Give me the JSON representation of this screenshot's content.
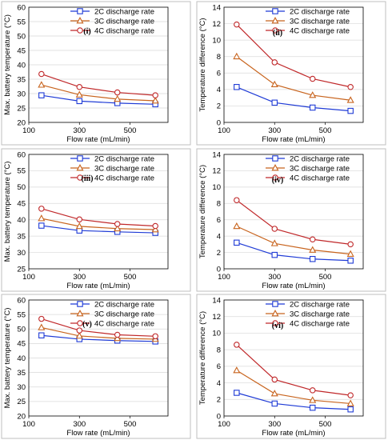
{
  "colors": {
    "2C": "#1f3bd6",
    "3C": "#c8641e",
    "4C": "#c0282a",
    "grid": "#d9d9d9"
  },
  "chart_data": [
    {
      "id": "i",
      "type": "line",
      "title": "",
      "panel_label": "(i)",
      "xlabel": "Flow rate (mL/min)",
      "ylabel": "Max. battery temperature (°C)",
      "x": [
        150,
        300,
        450,
        600
      ],
      "xlim": [
        100,
        650
      ],
      "xticks": [
        100,
        300,
        500
      ],
      "ylim": [
        20,
        60
      ],
      "yticks": [
        20,
        25,
        30,
        35,
        40,
        45,
        50,
        55,
        60
      ],
      "grid": "horizontal",
      "legend_position": "top-right",
      "series": [
        {
          "name": "2C discharge rate",
          "marker": "square",
          "values": [
            29.4,
            27.4,
            26.7,
            26.3
          ]
        },
        {
          "name": "3C discharge rate",
          "marker": "triangle",
          "values": [
            33.0,
            29.6,
            28.1,
            27.5
          ]
        },
        {
          "name": "4C discharge rate",
          "marker": "circle",
          "values": [
            36.8,
            32.3,
            30.4,
            29.4
          ]
        }
      ]
    },
    {
      "id": "ii",
      "type": "line",
      "title": "",
      "panel_label": "(ii)",
      "xlabel": "Flow rate (mL/min)",
      "ylabel": "Temperature difference (°C)",
      "x": [
        150,
        300,
        450,
        600
      ],
      "xlim": [
        100,
        650
      ],
      "xticks": [
        100,
        300,
        500
      ],
      "ylim": [
        0,
        14
      ],
      "yticks": [
        0,
        2,
        4,
        6,
        8,
        10,
        12,
        14
      ],
      "grid": "horizontal",
      "legend_position": "top-right",
      "series": [
        {
          "name": "2C discharge rate",
          "marker": "square",
          "values": [
            4.3,
            2.4,
            1.8,
            1.4
          ]
        },
        {
          "name": "3C discharge rate",
          "marker": "triangle",
          "values": [
            8.0,
            4.6,
            3.3,
            2.7
          ]
        },
        {
          "name": "4C discharge rate",
          "marker": "circle",
          "values": [
            11.9,
            7.3,
            5.3,
            4.3
          ]
        }
      ]
    },
    {
      "id": "iii",
      "type": "line",
      "title": "",
      "panel_label": "(iii)",
      "xlabel": "Flow rate (mL/min)",
      "ylabel": "Max. battery temperature (°C)",
      "x": [
        150,
        300,
        450,
        600
      ],
      "xlim": [
        100,
        650
      ],
      "xticks": [
        100,
        300,
        500
      ],
      "ylim": [
        25,
        60
      ],
      "yticks": [
        25,
        30,
        35,
        40,
        45,
        50,
        55,
        60
      ],
      "grid": "horizontal",
      "legend_position": "top-right",
      "series": [
        {
          "name": "2C discharge rate",
          "marker": "square",
          "values": [
            38.2,
            36.7,
            36.3,
            36.0
          ]
        },
        {
          "name": "3C discharge rate",
          "marker": "triangle",
          "values": [
            40.4,
            38.0,
            37.3,
            37.0
          ]
        },
        {
          "name": "4C discharge rate",
          "marker": "circle",
          "values": [
            43.4,
            40.1,
            38.7,
            38.1
          ]
        }
      ]
    },
    {
      "id": "iv",
      "type": "line",
      "title": "",
      "panel_label": "(iv)",
      "xlabel": "Flow rate (mL/min)",
      "ylabel": "Temperature difference (°C)",
      "x": [
        150,
        300,
        450,
        600
      ],
      "xlim": [
        100,
        650
      ],
      "xticks": [
        100,
        300,
        500
      ],
      "ylim": [
        0,
        14
      ],
      "yticks": [
        0,
        2,
        4,
        6,
        8,
        10,
        12,
        14
      ],
      "grid": "horizontal",
      "legend_position": "top-right",
      "series": [
        {
          "name": "2C discharge rate",
          "marker": "square",
          "values": [
            3.2,
            1.7,
            1.2,
            1.0
          ]
        },
        {
          "name": "3C discharge rate",
          "marker": "triangle",
          "values": [
            5.2,
            3.1,
            2.3,
            1.8
          ]
        },
        {
          "name": "4C discharge rate",
          "marker": "circle",
          "values": [
            8.4,
            4.9,
            3.6,
            3.0
          ]
        }
      ]
    },
    {
      "id": "v",
      "type": "line",
      "title": "",
      "panel_label": "(v)",
      "xlabel": "Flow rate (mL/min)",
      "ylabel": "Max. battery temperature (°C)",
      "x": [
        150,
        300,
        450,
        600
      ],
      "xlim": [
        100,
        650
      ],
      "xticks": [
        100,
        300,
        500
      ],
      "ylim": [
        20,
        60
      ],
      "yticks": [
        20,
        25,
        30,
        35,
        40,
        45,
        50,
        55,
        60
      ],
      "grid": "horizontal",
      "legend_position": "top-right",
      "series": [
        {
          "name": "2C discharge rate",
          "marker": "square",
          "values": [
            47.8,
            46.5,
            46.0,
            45.7
          ]
        },
        {
          "name": "3C discharge rate",
          "marker": "triangle",
          "values": [
            50.5,
            47.6,
            46.8,
            46.5
          ]
        },
        {
          "name": "4C discharge rate",
          "marker": "circle",
          "values": [
            53.5,
            49.5,
            48.0,
            47.5
          ]
        }
      ]
    },
    {
      "id": "vi",
      "type": "line",
      "title": "",
      "panel_label": "(vi)",
      "xlabel": "Flow rate (mL/min)",
      "ylabel": "Temperature difference (°C)",
      "x": [
        150,
        300,
        450,
        600
      ],
      "xlim": [
        100,
        650
      ],
      "xticks": [
        100,
        300,
        500
      ],
      "ylim": [
        0,
        14
      ],
      "yticks": [
        0,
        2,
        4,
        6,
        8,
        10,
        12,
        14
      ],
      "grid": "horizontal",
      "legend_position": "top-right",
      "series": [
        {
          "name": "2C discharge rate",
          "marker": "square",
          "values": [
            2.8,
            1.5,
            1.0,
            0.8
          ]
        },
        {
          "name": "3C discharge rate",
          "marker": "triangle",
          "values": [
            5.5,
            2.7,
            1.9,
            1.5
          ]
        },
        {
          "name": "4C discharge rate",
          "marker": "circle",
          "values": [
            8.6,
            4.4,
            3.1,
            2.5
          ]
        }
      ]
    }
  ]
}
